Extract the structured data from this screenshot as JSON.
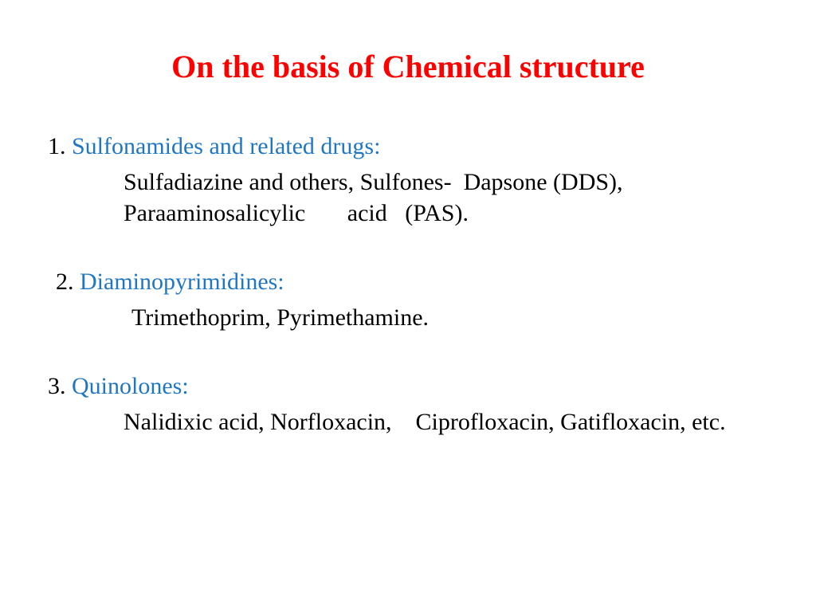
{
  "title": {
    "text": "On the basis of Chemical structure",
    "color": "#ff0000",
    "fontsize": 40
  },
  "body_fontsize": 30,
  "heading_color": "#1f77c4",
  "num_color": "#000000",
  "body_color": "#000000",
  "items": [
    {
      "num": "1.",
      "heading": "Sulfonamides and related drugs:",
      "body": "Sulfadiazine and others, Sulfones-  Dapsone (DDS), Paraaminosalicylic       acid   (PAS).",
      "indent": false
    },
    {
      "num": "2.",
      "heading": "Diaminopyrimidines:",
      "body": "Trimethoprim, Pyrimethamine.",
      "indent": true
    },
    {
      "num": "3.",
      "heading": "Quinolones:",
      "body": "Nalidixic acid, Norfloxacin,    Ciprofloxacin, Gatifloxacin, etc.",
      "indent": false
    }
  ]
}
